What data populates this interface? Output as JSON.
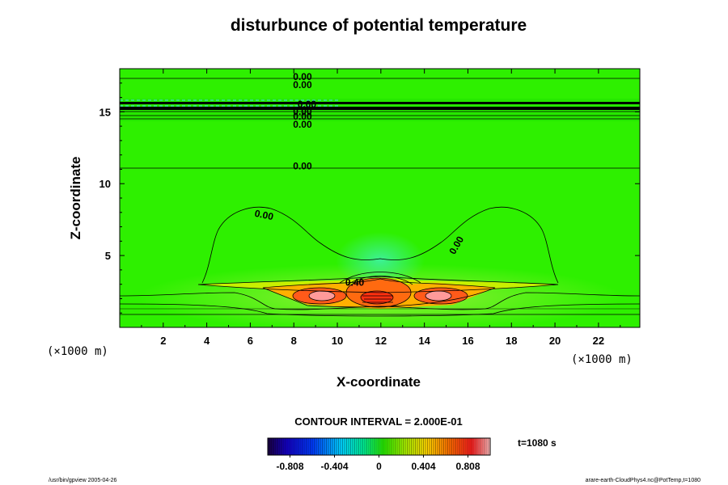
{
  "chart_data": {
    "type": "heatmap",
    "title": "disturbunce of potential temperature",
    "xlabel": "X-coordinate",
    "ylabel": "Z-coordinate",
    "x_unit": "(×1000 m)",
    "y_unit": "(×1000 m)",
    "xlim": [
      0,
      23.9
    ],
    "ylim": [
      0,
      18
    ],
    "x_ticks": [
      2,
      4,
      6,
      8,
      10,
      12,
      14,
      16,
      18,
      20,
      22
    ],
    "y_ticks": [
      5,
      10,
      15
    ],
    "contour_interval_text": "CONTOUR INTERVAL = 2.000E-01",
    "contour_labels": [
      {
        "text": "0.00",
        "x": 8.4,
        "z": 17.2
      },
      {
        "text": "0.00",
        "x": 8.4,
        "z": 16.65
      },
      {
        "text": "0.00",
        "x": 8.6,
        "z": 15.3
      },
      {
        "text": "0.00",
        "x": 8.4,
        "z": 14.8
      },
      {
        "text": "0.00",
        "x": 8.4,
        "z": 14.45
      },
      {
        "text": "0.00",
        "x": 8.4,
        "z": 13.9
      },
      {
        "text": "0.00",
        "x": 8.4,
        "z": 11.0
      },
      {
        "text": "0.00",
        "x": 6.6,
        "z": 7.6
      },
      {
        "text": "0.40",
        "x": 10.8,
        "z": 2.9
      },
      {
        "text": "0.00",
        "x": 15.6,
        "z": 5.6
      }
    ],
    "colorbar": {
      "min": -1.01,
      "max": 1.01,
      "tick_labels": [
        "-0.808",
        "-0.404",
        "0",
        "0.404",
        "0.808"
      ],
      "tick_values": [
        -0.808,
        -0.404,
        0,
        0.404,
        0.808
      ]
    },
    "time_label": "t=1080 s"
  },
  "footer": {
    "left": "/usr/bin/gpview 2005-04-26",
    "right": "arare-earth-CloudPhys4.nc@PotTemp,t=1080"
  }
}
